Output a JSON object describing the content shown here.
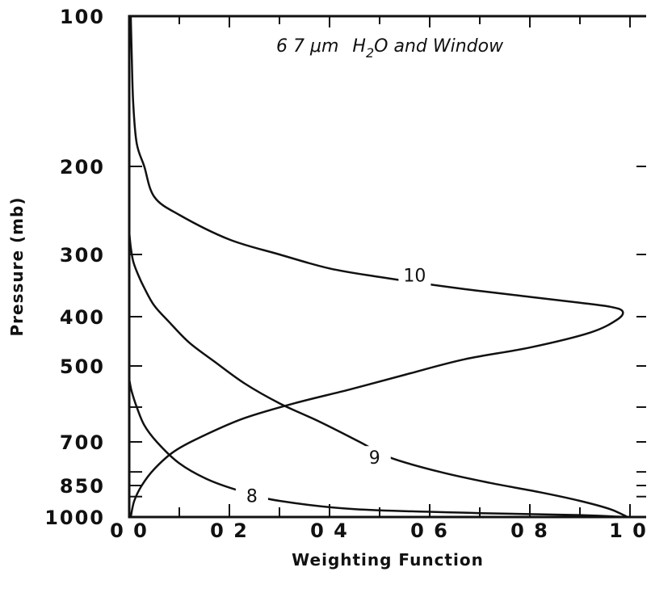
{
  "chart_data": {
    "type": "line",
    "title": "6 7 μm H2O and Window",
    "title_parts": {
      "prefix": "6 7 ",
      "mu": "μ",
      "m": "m ",
      "h": "H",
      "sub": "2",
      "o": "O",
      "rest": " and Window"
    },
    "xlabel": "Weighting Function",
    "ylabel": "Pressure (mb)",
    "xlim": [
      0.0,
      1.0
    ],
    "ylim": [
      1000,
      100
    ],
    "yscale": "pressure (descending)",
    "x_ticks": [
      {
        "value": 0.0,
        "label": "0 0"
      },
      {
        "value": 0.2,
        "label": "0 2"
      },
      {
        "value": 0.4,
        "label": "0 4"
      },
      {
        "value": 0.6,
        "label": "0 6"
      },
      {
        "value": 0.8,
        "label": "0 8"
      },
      {
        "value": 1.0,
        "label": "1 0"
      }
    ],
    "x_minor_ticks": [
      0.1,
      0.3,
      0.5,
      0.7,
      0.9
    ],
    "y_ticks": [
      {
        "value": 100,
        "label": "100"
      },
      {
        "value": 200,
        "label": "200"
      },
      {
        "value": 300,
        "label": "300"
      },
      {
        "value": 400,
        "label": "400"
      },
      {
        "value": 500,
        "label": "500"
      },
      {
        "value": 700,
        "label": "700"
      },
      {
        "value": 850,
        "label": "850"
      },
      {
        "value": 1000,
        "label": "1000"
      }
    ],
    "y_minor_ticks": [
      600,
      800,
      900
    ],
    "grid": false,
    "series": [
      {
        "name": "10",
        "label_at": {
          "x": 0.57,
          "p": 330
        },
        "points": [
          [
            0.003,
            100
          ],
          [
            0.005,
            120
          ],
          [
            0.008,
            150
          ],
          [
            0.015,
            180
          ],
          [
            0.03,
            200
          ],
          [
            0.05,
            230
          ],
          [
            0.1,
            250
          ],
          [
            0.2,
            280
          ],
          [
            0.3,
            300
          ],
          [
            0.4,
            320
          ],
          [
            0.5,
            333
          ],
          [
            0.65,
            350
          ],
          [
            0.8,
            365
          ],
          [
            0.9,
            375
          ],
          [
            0.96,
            382
          ],
          [
            0.985,
            390
          ],
          [
            0.975,
            405
          ],
          [
            0.92,
            430
          ],
          [
            0.8,
            460
          ],
          [
            0.67,
            485
          ],
          [
            0.55,
            520
          ],
          [
            0.44,
            555
          ],
          [
            0.33,
            590
          ],
          [
            0.23,
            630
          ],
          [
            0.15,
            680
          ],
          [
            0.09,
            730
          ],
          [
            0.05,
            790
          ],
          [
            0.025,
            850
          ],
          [
            0.01,
            920
          ],
          [
            0.003,
            1000
          ]
        ]
      },
      {
        "name": "9",
        "label_at": {
          "x": 0.49,
          "p": 750
        },
        "points": [
          [
            0.0,
            270
          ],
          [
            0.003,
            290
          ],
          [
            0.008,
            310
          ],
          [
            0.018,
            330
          ],
          [
            0.03,
            350
          ],
          [
            0.05,
            380
          ],
          [
            0.08,
            410
          ],
          [
            0.12,
            450
          ],
          [
            0.17,
            490
          ],
          [
            0.23,
            540
          ],
          [
            0.3,
            590
          ],
          [
            0.38,
            640
          ],
          [
            0.46,
            700
          ],
          [
            0.52,
            750
          ],
          [
            0.62,
            800
          ],
          [
            0.72,
            840
          ],
          [
            0.82,
            880
          ],
          [
            0.9,
            920
          ],
          [
            0.96,
            960
          ],
          [
            0.995,
            1000
          ]
        ]
      },
      {
        "name": "8",
        "label_at": {
          "x": 0.245,
          "p": 895
        },
        "points": [
          [
            0.0,
            530
          ],
          [
            0.005,
            560
          ],
          [
            0.015,
            600
          ],
          [
            0.03,
            650
          ],
          [
            0.055,
            700
          ],
          [
            0.1,
            770
          ],
          [
            0.16,
            830
          ],
          [
            0.23,
            880
          ],
          [
            0.3,
            920
          ],
          [
            0.45,
            960
          ],
          [
            0.7,
            980
          ],
          [
            0.9,
            990
          ],
          [
            0.99,
            1000
          ]
        ]
      }
    ]
  }
}
